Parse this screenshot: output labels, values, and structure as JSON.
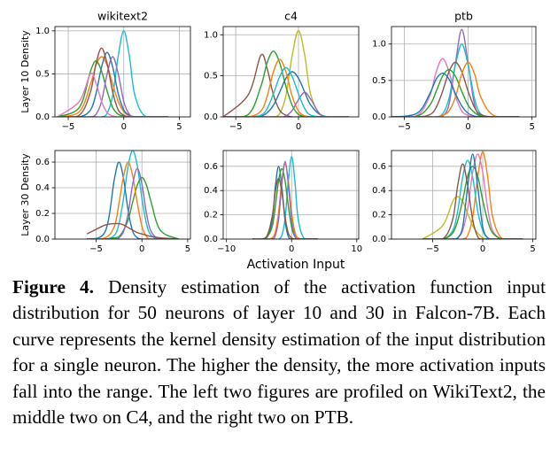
{
  "xlabel": "Activation Input",
  "caption": {
    "label": "Figure 4.",
    "text": "Density estimation of the activation function input distribution for 50 neurons of layer 10 and 30 in Falcon-7B. Each curve represents the kernel density estimation of the input distribution for a single neuron. The higher the density, the more activation inputs fall into the range. The left two figures are profiled on WikiText2, the middle two on C4, and the right two on PTB."
  },
  "chart_data": [
    {
      "type": "line",
      "title": "wikitext2",
      "ylabel": "Layer 10 Density",
      "grid": true,
      "xlim": [
        -6.2,
        6
      ],
      "xticks": [
        {
          "value": -5,
          "label": "−5"
        },
        0,
        5
      ],
      "ylim": [
        0,
        1.05
      ],
      "yticks": [
        {
          "value": 0,
          "label": "0.0"
        },
        {
          "value": 0.5,
          "label": "0.5"
        },
        {
          "value": 1,
          "label": "1.0"
        }
      ],
      "x": [
        -6,
        -4,
        -3,
        -2.5,
        -2,
        -1.5,
        -1,
        -0.5,
        0,
        0.5,
        1,
        2,
        4
      ],
      "series": [
        {
          "color": "#17becf",
          "values": [
            0,
            0,
            0,
            0,
            0,
            0.04,
            0.25,
            0.71,
            1.0,
            0.71,
            0.25,
            0,
            0
          ]
        },
        {
          "color": "#ff7f0e",
          "values": [
            0,
            0.06,
            0.38,
            0.6,
            0.7,
            0.6,
            0.38,
            0.18,
            0.06,
            0.01,
            0,
            0,
            0
          ]
        },
        {
          "color": "#1f77b4",
          "values": [
            0,
            0,
            0.08,
            0.27,
            0.58,
            0.75,
            0.58,
            0.27,
            0.08,
            0.02,
            0,
            0,
            0
          ]
        },
        {
          "color": "#2ca02c",
          "values": [
            0,
            0.11,
            0.53,
            0.65,
            0.53,
            0.3,
            0.11,
            0.03,
            0.01,
            0,
            0,
            0,
            0
          ]
        },
        {
          "color": "#9467bd",
          "values": [
            0,
            0,
            0,
            0.03,
            0.18,
            0.5,
            0.7,
            0.5,
            0.18,
            0.03,
            0,
            0,
            0
          ]
        },
        {
          "color": "#8c564b",
          "values": [
            0,
            0.02,
            0.29,
            0.62,
            0.8,
            0.62,
            0.29,
            0.08,
            0.02,
            0,
            0,
            0,
            0
          ]
        },
        {
          "color": "#e377c2",
          "values": [
            0,
            0.18,
            0.5,
            0.39,
            0.18,
            0.05,
            0.01,
            0,
            0,
            0,
            0,
            0,
            0
          ]
        }
      ]
    },
    {
      "type": "line",
      "title": "c4",
      "grid": true,
      "xlim": [
        -6,
        4.8
      ],
      "xticks": [
        {
          "value": -5,
          "label": "−5"
        },
        0
      ],
      "ylim": [
        0,
        1.1
      ],
      "yticks": [
        {
          "value": 0,
          "label": "0.0"
        },
        {
          "value": 0.5,
          "label": "0.5"
        },
        {
          "value": 1,
          "label": "1.0"
        }
      ],
      "x": [
        -6,
        -4,
        -3,
        -2.5,
        -2,
        -1.5,
        -1,
        -0.5,
        0,
        0.5,
        1,
        2,
        4
      ],
      "series": [
        {
          "color": "#bcbd22",
          "values": [
            0,
            0,
            0,
            0,
            0,
            0.04,
            0.26,
            0.75,
            1.05,
            0.75,
            0.26,
            0,
            0
          ]
        },
        {
          "color": "#8c564b",
          "values": [
            0,
            0.27,
            0.75,
            0.59,
            0.27,
            0.08,
            0.02,
            0,
            0,
            0,
            0,
            0,
            0
          ]
        },
        {
          "color": "#2ca02c",
          "values": [
            0,
            0.03,
            0.37,
            0.66,
            0.8,
            0.66,
            0.37,
            0.14,
            0.03,
            0.01,
            0,
            0,
            0
          ]
        },
        {
          "color": "#1f77b4",
          "values": [
            0,
            0,
            0.01,
            0.05,
            0.14,
            0.3,
            0.47,
            0.55,
            0.47,
            0.3,
            0.14,
            0.01,
            0
          ]
        },
        {
          "color": "#ff7f0e",
          "values": [
            0,
            0,
            0.07,
            0.25,
            0.55,
            0.7,
            0.55,
            0.25,
            0.07,
            0.01,
            0,
            0,
            0
          ]
        },
        {
          "color": "#9467bd",
          "values": [
            0,
            0,
            0,
            0,
            0,
            0,
            0.01,
            0.08,
            0.21,
            0.3,
            0.21,
            0,
            0
          ]
        },
        {
          "color": "#17becf",
          "values": [
            0,
            0,
            0.02,
            0.1,
            0.28,
            0.49,
            0.6,
            0.49,
            0.28,
            0.1,
            0.02,
            0,
            0
          ]
        }
      ]
    },
    {
      "type": "line",
      "title": "ptb",
      "grid": true,
      "xlim": [
        -6,
        5.3
      ],
      "xticks": [
        {
          "value": -5,
          "label": "−5"
        },
        0,
        5
      ],
      "ylim": [
        0,
        1.24
      ],
      "yticks": [
        {
          "value": 0,
          "label": "0.0"
        },
        {
          "value": 0.5,
          "label": "0.5"
        },
        {
          "value": 1,
          "label": "1.0"
        }
      ],
      "x": [
        -6,
        -4,
        -3,
        -2.5,
        -2,
        -1.5,
        -1,
        -0.5,
        0,
        0.5,
        1,
        2,
        4
      ],
      "series": [
        {
          "color": "#9467bd",
          "values": [
            0,
            0,
            0,
            0,
            0.01,
            0.17,
            0.73,
            1.2,
            0.73,
            0.17,
            0.01,
            0,
            0
          ]
        },
        {
          "color": "#17becf",
          "values": [
            0,
            0,
            0,
            0,
            0.04,
            0.25,
            0.71,
            1.0,
            0.71,
            0.25,
            0.04,
            0,
            0
          ]
        },
        {
          "color": "#e377c2",
          "values": [
            0,
            0.02,
            0.29,
            0.62,
            0.8,
            0.62,
            0.29,
            0.08,
            0.02,
            0,
            0,
            0,
            0
          ]
        },
        {
          "color": "#8c564b",
          "values": [
            0,
            0,
            0.03,
            0.13,
            0.35,
            0.62,
            0.75,
            0.62,
            0.35,
            0.13,
            0.03,
            0,
            0
          ]
        },
        {
          "color": "#2ca02c",
          "values": [
            0,
            0.01,
            0.16,
            0.35,
            0.56,
            0.65,
            0.56,
            0.35,
            0.16,
            0.06,
            0.01,
            0,
            0
          ]
        },
        {
          "color": "#ff7f0e",
          "values": [
            0,
            0,
            0,
            0,
            0.02,
            0.08,
            0.27,
            0.59,
            0.75,
            0.59,
            0.27,
            0.02,
            0
          ]
        },
        {
          "color": "#1f77b4",
          "values": [
            0,
            0.05,
            0.32,
            0.52,
            0.6,
            0.52,
            0.32,
            0.15,
            0.05,
            0.01,
            0,
            0,
            0
          ]
        }
      ]
    },
    {
      "type": "line",
      "ylabel": "Layer 30 Density",
      "grid": true,
      "xlim": [
        -9.5,
        5.3
      ],
      "xticks": [
        {
          "value": -5,
          "label": "−5"
        },
        0,
        5
      ],
      "ylim": [
        0,
        0.69
      ],
      "yticks": [
        {
          "value": 0,
          "label": "0.0"
        },
        0.2,
        0.4,
        0.6
      ],
      "x": [
        -6,
        -4,
        -3,
        -2.5,
        -2,
        -1.5,
        -1,
        -0.5,
        0,
        0.5,
        1,
        2,
        4
      ],
      "series": [
        {
          "color": "#17becf",
          "values": [
            0,
            0,
            0.03,
            0.12,
            0.32,
            0.57,
            0.69,
            0.57,
            0.32,
            0.12,
            0.03,
            0,
            0
          ]
        },
        {
          "color": "#1f77b4",
          "values": [
            0,
            0.06,
            0.47,
            0.6,
            0.47,
            0.22,
            0.06,
            0.01,
            0,
            0,
            0,
            0,
            0
          ]
        },
        {
          "color": "#2ca02c",
          "values": [
            0,
            0,
            0.01,
            0.02,
            0.07,
            0.15,
            0.29,
            0.42,
            0.48,
            0.42,
            0.29,
            0.07,
            0
          ]
        },
        {
          "color": "#ff7f0e",
          "values": [
            0,
            0.01,
            0.1,
            0.28,
            0.49,
            0.6,
            0.49,
            0.28,
            0.1,
            0.02,
            0,
            0,
            0
          ]
        },
        {
          "color": "#9467bd",
          "values": [
            0,
            0,
            0,
            0.01,
            0.06,
            0.2,
            0.43,
            0.55,
            0.43,
            0.2,
            0.06,
            0,
            0
          ]
        },
        {
          "color": "#8c564b",
          "values": [
            0.04,
            0.11,
            0.12,
            0.12,
            0.11,
            0.09,
            0.07,
            0.05,
            0.04,
            0.03,
            0.02,
            0.01,
            0
          ]
        }
      ]
    },
    {
      "type": "line",
      "grid": true,
      "xlim": [
        -10.5,
        10.3
      ],
      "xticks": [
        {
          "value": -10,
          "label": "−10"
        },
        0,
        10
      ],
      "ylim": [
        0,
        0.73
      ],
      "yticks": [
        {
          "value": 0,
          "label": "0.0"
        },
        0.2,
        0.4,
        0.6
      ],
      "x": [
        -6,
        -4,
        -3,
        -2.5,
        -2,
        -1.5,
        -1,
        -0.5,
        0,
        0.5,
        1,
        2,
        4
      ],
      "series": [
        {
          "color": "#17becf",
          "values": [
            0,
            0,
            0,
            0,
            0,
            0.03,
            0.17,
            0.48,
            0.68,
            0.48,
            0.17,
            0,
            0
          ]
        },
        {
          "color": "#1f77b4",
          "values": [
            0,
            0,
            0.15,
            0.43,
            0.6,
            0.43,
            0.15,
            0.02,
            0,
            0,
            0,
            0,
            0
          ]
        },
        {
          "color": "#ff7f0e",
          "values": [
            0,
            0,
            0.01,
            0.06,
            0.22,
            0.48,
            0.62,
            0.48,
            0.22,
            0.06,
            0.01,
            0,
            0
          ]
        },
        {
          "color": "#2ca02c",
          "values": [
            0,
            0.01,
            0.1,
            0.27,
            0.48,
            0.58,
            0.48,
            0.27,
            0.1,
            0.02,
            0,
            0,
            0
          ]
        },
        {
          "color": "#9467bd",
          "values": [
            0,
            0,
            0,
            0.03,
            0.16,
            0.45,
            0.64,
            0.45,
            0.16,
            0.03,
            0,
            0,
            0
          ]
        },
        {
          "color": "#8c564b",
          "values": [
            0,
            0.01,
            0.18,
            0.39,
            0.5,
            0.39,
            0.18,
            0.05,
            0.01,
            0,
            0,
            0,
            0
          ]
        }
      ]
    },
    {
      "type": "line",
      "grid": true,
      "xlim": [
        -9.1,
        5.3
      ],
      "xticks": [
        {
          "value": -5,
          "label": "−5"
        },
        0,
        5
      ],
      "ylim": [
        0,
        0.73
      ],
      "yticks": [
        {
          "value": 0,
          "label": "0.0"
        },
        0.2,
        0.4,
        0.6
      ],
      "x": [
        -6,
        -4,
        -3,
        -2.5,
        -2,
        -1.5,
        -1,
        -0.5,
        0,
        0.5,
        1,
        2,
        4
      ],
      "series": [
        {
          "color": "#ff7f0e",
          "values": [
            0,
            0,
            0,
            0,
            0,
            0.03,
            0.18,
            0.51,
            0.72,
            0.51,
            0.18,
            0,
            0
          ]
        },
        {
          "color": "#17becf",
          "values": [
            0,
            0,
            0.07,
            0.23,
            0.51,
            0.65,
            0.51,
            0.23,
            0.07,
            0.01,
            0,
            0,
            0
          ]
        },
        {
          "color": "#bcbd22",
          "values": [
            0,
            0.11,
            0.31,
            0.35,
            0.31,
            0.21,
            0.11,
            0.05,
            0.01,
            0,
            0,
            0,
            0
          ]
        },
        {
          "color": "#e377c2",
          "values": [
            0,
            0,
            0,
            0.01,
            0.07,
            0.25,
            0.55,
            0.7,
            0.55,
            0.25,
            0.07,
            0,
            0
          ]
        },
        {
          "color": "#2ca02c",
          "values": [
            0,
            0,
            0.05,
            0.15,
            0.32,
            0.52,
            0.6,
            0.52,
            0.32,
            0.15,
            0.05,
            0,
            0
          ]
        },
        {
          "color": "#8c564b",
          "values": [
            0,
            0,
            0.16,
            0.44,
            0.62,
            0.44,
            0.16,
            0.02,
            0,
            0,
            0,
            0,
            0
          ]
        },
        {
          "color": "#1f77b4",
          "values": [
            0,
            0,
            0,
            0.01,
            0.1,
            0.43,
            0.7,
            0.43,
            0.1,
            0.01,
            0,
            0,
            0
          ]
        }
      ]
    }
  ]
}
